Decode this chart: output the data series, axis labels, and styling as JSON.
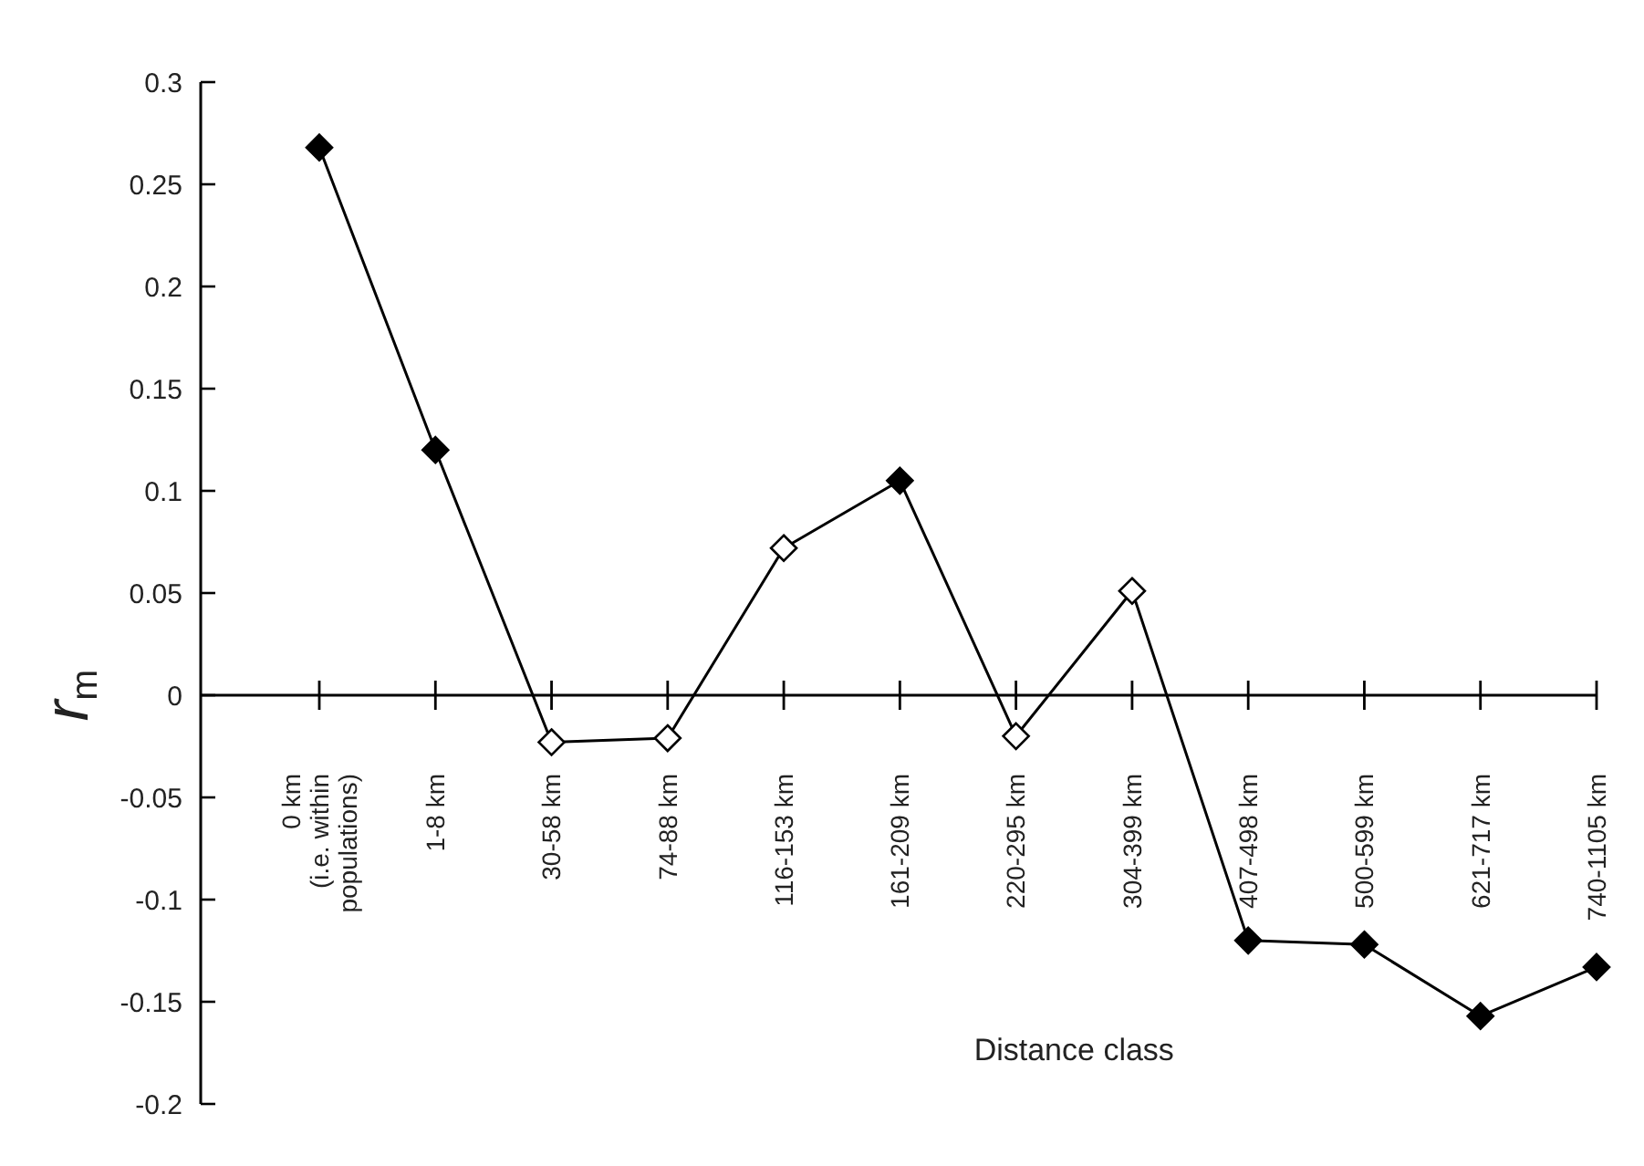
{
  "chart_data": {
    "type": "line",
    "xlabel": "Distance class",
    "ylabel": "r$_{m}$",
    "categories": [
      "0 km\n(i.e. within\npopulations)",
      "1-8 km",
      "30-58 km",
      "74-88 km",
      "116-153 km",
      "161-209 km",
      "220-295 km",
      "304-399 km",
      "407-498 km",
      "500-599 km",
      "621-717 km",
      "740-1105 km"
    ],
    "series": [
      {
        "color": "#000000",
        "values": [
          0.268,
          0.12,
          -0.023,
          -0.021,
          0.072,
          0.105,
          -0.02,
          0.051,
          -0.12,
          -0.122,
          -0.157,
          -0.133
        ],
        "colors": [
          "#000000",
          "#000000",
          "#ffffff",
          "#ffffff",
          "#ffffff",
          "#000000",
          "#ffffff",
          "#ffffff",
          "#000000",
          "#000000",
          "#000000",
          "#000000"
        ]
      }
    ],
    "ylim": [
      -0.2,
      0.3
    ],
    "yticks": [
      -0.2,
      -0.15,
      -0.1,
      -0.05,
      0,
      0.05,
      0.1,
      0.15,
      0.2,
      0.25,
      0.3
    ],
    "marker": "diamond",
    "line_style": "solid"
  }
}
